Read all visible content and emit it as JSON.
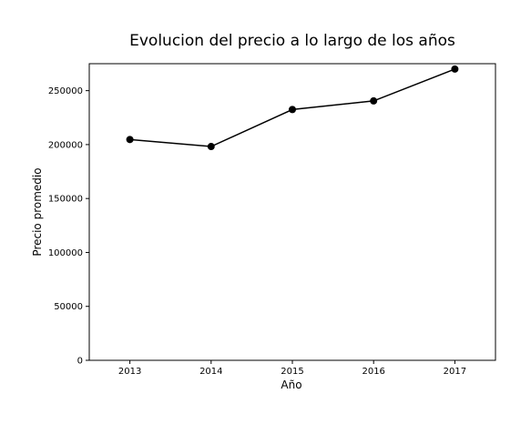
{
  "chart_data": {
    "type": "line",
    "title": "Evolucion del precio a lo largo de los años",
    "xlabel": "Año",
    "ylabel": "Precio promedio",
    "x": [
      2013,
      2014,
      2015,
      2016,
      2017
    ],
    "x_tick_labels": [
      "2013",
      "2014",
      "2015",
      "2016",
      "2017"
    ],
    "y_ticks": [
      0,
      50000,
      100000,
      150000,
      200000,
      250000
    ],
    "y_tick_labels": [
      "0",
      "50000",
      "100000",
      "150000",
      "200000",
      "250000"
    ],
    "xlim": [
      2012.5,
      2017.5
    ],
    "ylim": [
      0,
      275000
    ],
    "grid": false,
    "series": [
      {
        "values": [
          204700,
          198200,
          232500,
          240500,
          270000
        ],
        "color": "#000000",
        "marker": "circle"
      }
    ]
  }
}
